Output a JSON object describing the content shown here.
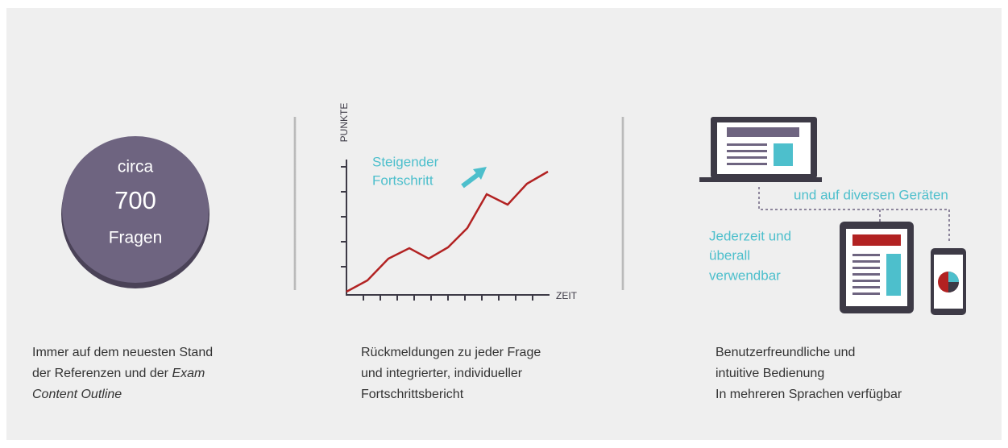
{
  "circle": {
    "line1": "circa",
    "line2": "700",
    "line3": "Fragen"
  },
  "graph": {
    "y_axis_label": "PUNKTE",
    "x_axis_label": "ZEIT",
    "annotation": [
      "Steigender",
      "Fortschritt"
    ]
  },
  "devices": {
    "top_label": "und auf diversen Geräten",
    "side_label": [
      "Jederzeit und",
      "überall",
      "verwendbar"
    ]
  },
  "captions": [
    {
      "lines": [
        "Immer auf dem neuesten Stand"
      ],
      "mixed_line": {
        "regular": "der Referenzen und der ",
        "italic": "Exam"
      },
      "italic_line": "Content Outline"
    },
    {
      "lines": [
        "Rückmeldungen zu jeder Frage",
        "und integrierter, individueller",
        "Fortschrittsbericht"
      ]
    },
    {
      "lines": [
        "Benutzerfreundliche und",
        "intuitive Bedienung",
        "In mehreren Sprachen verfügbar"
      ]
    }
  ]
}
